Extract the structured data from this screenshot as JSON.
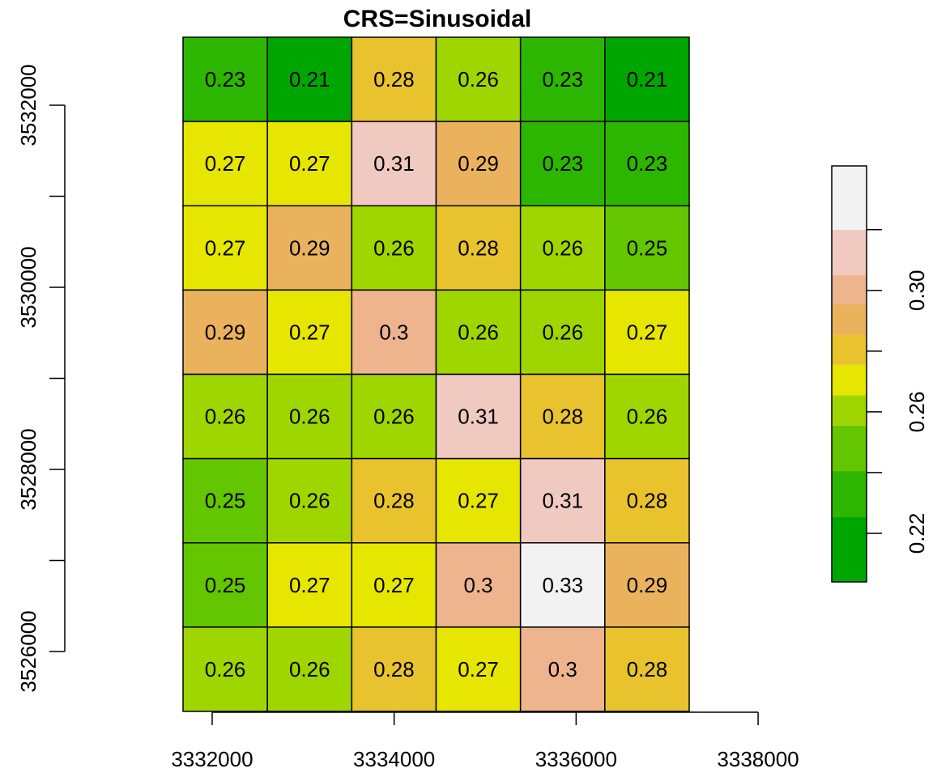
{
  "chart_data": {
    "type": "heatmap",
    "title": "CRS=Sinusoidal",
    "xlabel": "",
    "ylabel": "",
    "x_ticks": [
      3332000,
      3334000,
      3336000,
      3338000
    ],
    "x_tick_labels": [
      "3332000",
      "3334000",
      "3336000",
      "3338000"
    ],
    "y_ticks": [
      3526000,
      3527000,
      3528000,
      3529000,
      3530000,
      3531000,
      3532000
    ],
    "y_tick_labels": [
      "3526000",
      "",
      "3528000",
      "",
      "3530000",
      "",
      "3532000"
    ],
    "xlim": [
      3331680,
      3337243
    ],
    "ylim": [
      3525342,
      3532747
    ],
    "xaxis_range": [
      3332000,
      3338000
    ],
    "yaxis_range": [
      3526000,
      3532000
    ],
    "rows": 8,
    "cols": 6,
    "values": [
      [
        0.23,
        0.21,
        0.28,
        0.26,
        0.23,
        0.21
      ],
      [
        0.27,
        0.27,
        0.31,
        0.29,
        0.23,
        0.23
      ],
      [
        0.27,
        0.29,
        0.26,
        0.28,
        0.26,
        0.25
      ],
      [
        0.29,
        0.27,
        0.3,
        0.26,
        0.26,
        0.27
      ],
      [
        0.26,
        0.26,
        0.26,
        0.31,
        0.28,
        0.26
      ],
      [
        0.25,
        0.26,
        0.28,
        0.27,
        0.31,
        0.28
      ],
      [
        0.25,
        0.27,
        0.27,
        0.3,
        0.33,
        0.29
      ],
      [
        0.26,
        0.26,
        0.28,
        0.27,
        0.3,
        0.28
      ]
    ],
    "cell_labels": [
      [
        "0.23",
        "0.21",
        "0.28",
        "0.26",
        "0.23",
        "0.21"
      ],
      [
        "0.27",
        "0.27",
        "0.31",
        "0.29",
        "0.23",
        "0.23"
      ],
      [
        "0.27",
        "0.29",
        "0.26",
        "0.28",
        "0.26",
        "0.25"
      ],
      [
        "0.29",
        "0.27",
        "0.3",
        "0.26",
        "0.26",
        "0.27"
      ],
      [
        "0.26",
        "0.26",
        "0.26",
        "0.31",
        "0.28",
        "0.26"
      ],
      [
        "0.25",
        "0.26",
        "0.28",
        "0.27",
        "0.31",
        "0.28"
      ],
      [
        "0.25",
        "0.27",
        "0.27",
        "0.3",
        "0.33",
        "0.29"
      ],
      [
        "0.26",
        "0.26",
        "0.28",
        "0.27",
        "0.3",
        "0.28"
      ]
    ],
    "legend": {
      "placement": "right",
      "colors": [
        "#00A600",
        "#2DB600",
        "#63C600",
        "#A0D600",
        "#E6E600",
        "#E8C32E",
        "#EBB25E",
        "#EDB48E",
        "#F0C9C0",
        "#F2F2F2"
      ],
      "breaks": [
        0.204,
        0.2255,
        0.2405,
        0.2555,
        0.2655,
        0.2755,
        0.2855,
        0.2955,
        0.305,
        0.32,
        0.341
      ],
      "ticks": [
        0.22,
        0.24,
        0.26,
        0.28,
        0.3,
        0.32
      ],
      "tick_labels": [
        "0.22",
        "",
        "0.26",
        "",
        "0.30",
        ""
      ]
    },
    "grid": false
  }
}
